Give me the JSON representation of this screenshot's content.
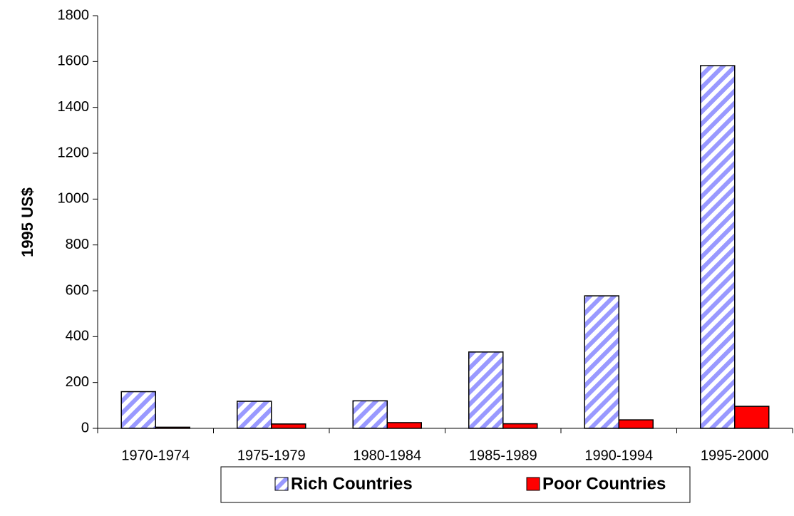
{
  "chart_data": {
    "type": "bar",
    "y_label": "1995 US$",
    "categories": [
      "1970-1974",
      "1975-1979",
      "1980-1984",
      "1985-1989",
      "1990-1994",
      "1995-2000"
    ],
    "series": [
      {
        "name": "Rich Countries",
        "color": "#9999ff",
        "pattern": "hatch",
        "values": [
          160,
          118,
          120,
          333,
          578,
          1582
        ]
      },
      {
        "name": "Poor Countries",
        "color": "#ff0000",
        "values": [
          5,
          19,
          25,
          20,
          37,
          96
        ]
      }
    ],
    "ylim": [
      0,
      1800
    ],
    "yticks": [
      0,
      200,
      400,
      600,
      800,
      1000,
      1200,
      1400,
      1600,
      1800
    ],
    "grid": false,
    "legend": "bottom"
  }
}
